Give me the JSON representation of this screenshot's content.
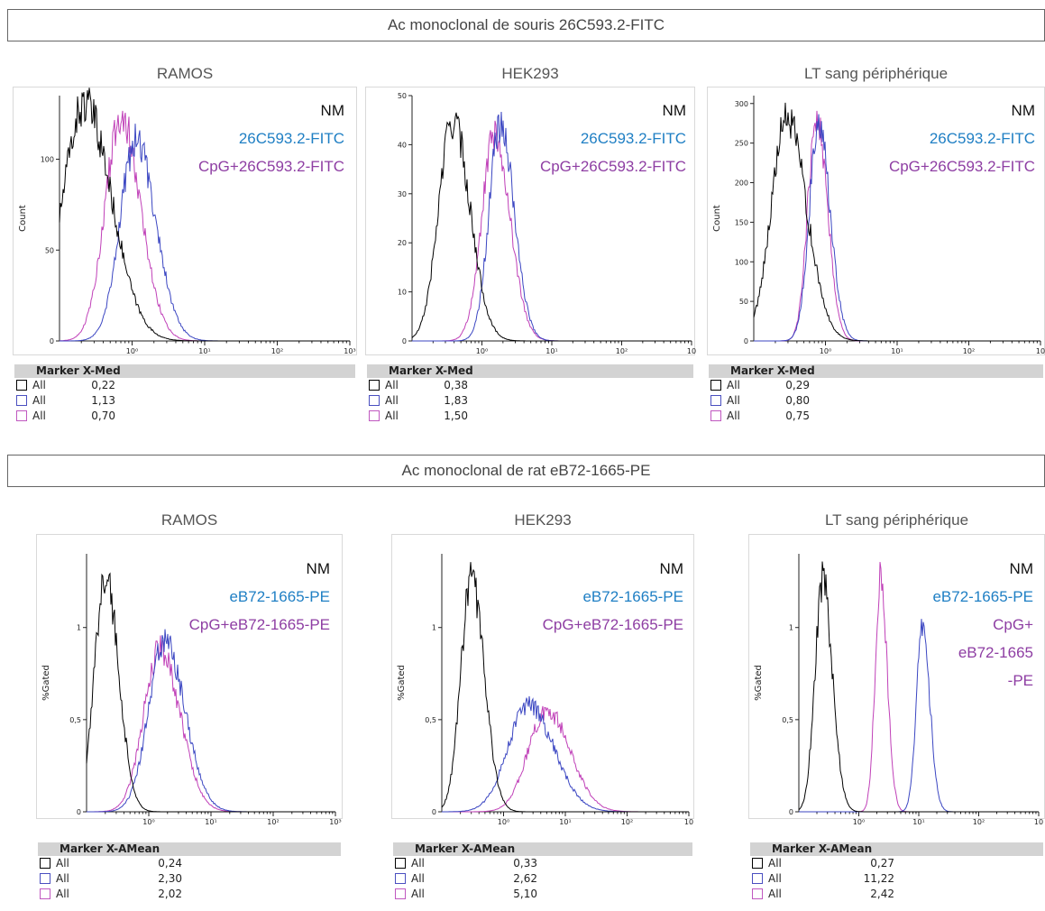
{
  "sections": [
    {
      "banner": "Ac monoclonal de souris 26C593.2-FITC",
      "panels": [
        {
          "title": "RAMOS",
          "ylabel": "Count",
          "yticks": [
            "0",
            "50",
            "100"
          ],
          "ymax": 135,
          "xticks": [
            "10⁰",
            "10¹",
            "10²",
            "10³"
          ],
          "legend": [
            "NM",
            "26C593.2-FITC",
            "CpG+26C593.2-FITC"
          ],
          "stats_header": "Marker X-Med",
          "stats": [
            {
              "name": "All",
              "value": "0,22",
              "color": "#000000"
            },
            {
              "name": "All",
              "value": "1,13",
              "color": "#4a4fc0"
            },
            {
              "name": "All",
              "value": "0,70",
              "color": "#c058c0"
            }
          ],
          "chart_data": {
            "type": "area",
            "xscale": "log",
            "xlim": [
              0.1,
              1000
            ],
            "ylim": [
              0,
              135
            ],
            "series": [
              {
                "name": "NM",
                "color": "#000000",
                "peak_x": 0.22,
                "peak_y": 130,
                "width": 0.3
              },
              {
                "name": "26C593.2-FITC",
                "color": "#3b46c2",
                "peak_x": 1.13,
                "peak_y": 110,
                "width": 0.22
              },
              {
                "name": "CpG+26C593.2-FITC",
                "color": "#c040b8",
                "peak_x": 0.7,
                "peak_y": 123,
                "width": 0.22
              }
            ]
          }
        },
        {
          "title": "HEK293",
          "ylabel": "",
          "yticks": [
            "0",
            "10",
            "20",
            "30",
            "40",
            "50"
          ],
          "ymax": 50,
          "xticks": [
            "10⁰",
            "10¹",
            "10²",
            "10"
          ],
          "legend": [
            "NM",
            "26C593.2-FITC",
            "CpG+26C593.2-FITC"
          ],
          "stats_header": "Marker X-Med",
          "stats": [
            {
              "name": "All",
              "value": "0,38",
              "color": "#000000"
            },
            {
              "name": "All",
              "value": "1,83",
              "color": "#4a4fc0"
            },
            {
              "name": "All",
              "value": "1,50",
              "color": "#c058c0"
            }
          ],
          "chart_data": {
            "type": "area",
            "xscale": "log",
            "xlim": [
              0.1,
              1000
            ],
            "ylim": [
              0,
              50
            ],
            "series": [
              {
                "name": "NM",
                "color": "#000000",
                "peak_x": 0.38,
                "peak_y": 45,
                "width": 0.2
              },
              {
                "name": "26C593.2-FITC",
                "color": "#3b46c2",
                "peak_x": 1.83,
                "peak_y": 44,
                "width": 0.16
              },
              {
                "name": "CpG+26C593.2-FITC",
                "color": "#c040b8",
                "peak_x": 1.5,
                "peak_y": 42,
                "width": 0.18
              }
            ]
          }
        },
        {
          "title": "LT sang périphérique",
          "ylabel": "Count",
          "yticks": [
            "0",
            "50",
            "100",
            "150",
            "200",
            "250",
            "300"
          ],
          "ymax": 310,
          "xticks": [
            "10⁰",
            "10¹",
            "10²",
            "10"
          ],
          "legend": [
            "NM",
            "26C593.2-FITC",
            "CpG+26C593.2-FITC"
          ],
          "stats_header": "Marker X-Med",
          "stats": [
            {
              "name": "All",
              "value": "0,29",
              "color": "#000000"
            },
            {
              "name": "All",
              "value": "0,80",
              "color": "#4a4fc0"
            },
            {
              "name": "All",
              "value": "0,75",
              "color": "#c058c0"
            }
          ],
          "chart_data": {
            "type": "area",
            "xscale": "log",
            "xlim": [
              0.1,
              1000
            ],
            "ylim": [
              0,
              310
            ],
            "series": [
              {
                "name": "NM",
                "color": "#000000",
                "peak_x": 0.29,
                "peak_y": 280,
                "width": 0.22
              },
              {
                "name": "26C593.2-FITC",
                "color": "#3b46c2",
                "peak_x": 0.8,
                "peak_y": 270,
                "width": 0.13
              },
              {
                "name": "CpG+26C593.2-FITC",
                "color": "#c040b8",
                "peak_x": 0.75,
                "peak_y": 290,
                "width": 0.12
              }
            ]
          }
        }
      ]
    },
    {
      "banner": "Ac monoclonal de rat eB72-1665-PE",
      "panels": [
        {
          "title": "RAMOS",
          "ylabel": "%Gated",
          "yticks": [
            "0",
            "0,5",
            "1"
          ],
          "ymax": 1.4,
          "xticks": [
            "10⁰",
            "10¹",
            "10²",
            "10³"
          ],
          "legend": [
            "NM",
            "eB72-1665-PE",
            "CpG+eB72-1665-PE"
          ],
          "stats_header": "Marker X-AMean",
          "stats": [
            {
              "name": "All",
              "value": "0,24",
              "color": "#000000"
            },
            {
              "name": "All",
              "value": "2,30",
              "color": "#4a4fc0"
            },
            {
              "name": "All",
              "value": "2,02",
              "color": "#c058c0"
            }
          ],
          "chart_data": {
            "type": "area",
            "xscale": "log",
            "xlim": [
              0.1,
              1000
            ],
            "ylim": [
              0,
              1.4
            ],
            "series": [
              {
                "name": "NM",
                "color": "#000000",
                "peak_x": 0.2,
                "peak_y": 1.3,
                "width": 0.17
              },
              {
                "name": "eB72-1665-PE",
                "color": "#3b46c2",
                "peak_x": 1.8,
                "peak_y": 0.92,
                "width": 0.26
              },
              {
                "name": "CpG+eB72-1665-PE",
                "color": "#c040b8",
                "peak_x": 1.5,
                "peak_y": 0.88,
                "width": 0.26
              }
            ]
          }
        },
        {
          "title": "HEK293",
          "ylabel": "%Gated",
          "yticks": [
            "0",
            "0,5",
            "1"
          ],
          "ymax": 1.4,
          "xticks": [
            "10⁰",
            "10¹",
            "10²",
            "10"
          ],
          "legend": [
            "NM",
            "eB72-1665-PE",
            "CpG+eB72-1665-PE"
          ],
          "stats_header": "Marker X-AMean",
          "stats": [
            {
              "name": "All",
              "value": "0,33",
              "color": "#000000"
            },
            {
              "name": "All",
              "value": "2,62",
              "color": "#4a4fc0"
            },
            {
              "name": "All",
              "value": "5,10",
              "color": "#c058c0"
            }
          ],
          "chart_data": {
            "type": "area",
            "xscale": "log",
            "xlim": [
              0.1,
              1000
            ],
            "ylim": [
              0,
              1.4
            ],
            "series": [
              {
                "name": "NM",
                "color": "#000000",
                "peak_x": 0.3,
                "peak_y": 1.25,
                "width": 0.17
              },
              {
                "name": "eB72-1665-PE",
                "color": "#3b46c2",
                "peak_x": 2.5,
                "peak_y": 0.58,
                "width": 0.33
              },
              {
                "name": "CpG+eB72-1665-PE",
                "color": "#c040b8",
                "peak_x": 5.0,
                "peak_y": 0.55,
                "width": 0.3
              }
            ]
          }
        },
        {
          "title": "LT sang périphérique",
          "ylabel": "%Gated",
          "yticks": [
            "0",
            "0,5",
            "1"
          ],
          "ymax": 1.4,
          "xticks": [
            "10⁰",
            "10¹",
            "10²",
            "10"
          ],
          "legend": [
            "NM",
            "eB72-1665-PE",
            "CpG+",
            "eB72-1665",
            "-PE"
          ],
          "stats_header": "Marker X-AMean",
          "stats": [
            {
              "name": "All",
              "value": "0,27",
              "color": "#000000"
            },
            {
              "name": "All",
              "value": "11,22",
              "color": "#4a4fc0"
            },
            {
              "name": "All",
              "value": "2,42",
              "color": "#c058c0"
            }
          ],
          "chart_data": {
            "type": "area",
            "xscale": "log",
            "xlim": [
              0.1,
              1000
            ],
            "ylim": [
              0,
              1.4
            ],
            "series": [
              {
                "name": "NM",
                "color": "#000000",
                "peak_x": 0.25,
                "peak_y": 1.25,
                "width": 0.13
              },
              {
                "name": "eB72-1665-PE",
                "color": "#3b46c2",
                "peak_x": 11.5,
                "peak_y": 0.98,
                "width": 0.1
              },
              {
                "name": "CpG+eB72-1665-PE",
                "color": "#c040b8",
                "peak_x": 2.3,
                "peak_y": 1.28,
                "width": 0.09
              }
            ]
          }
        }
      ]
    }
  ]
}
